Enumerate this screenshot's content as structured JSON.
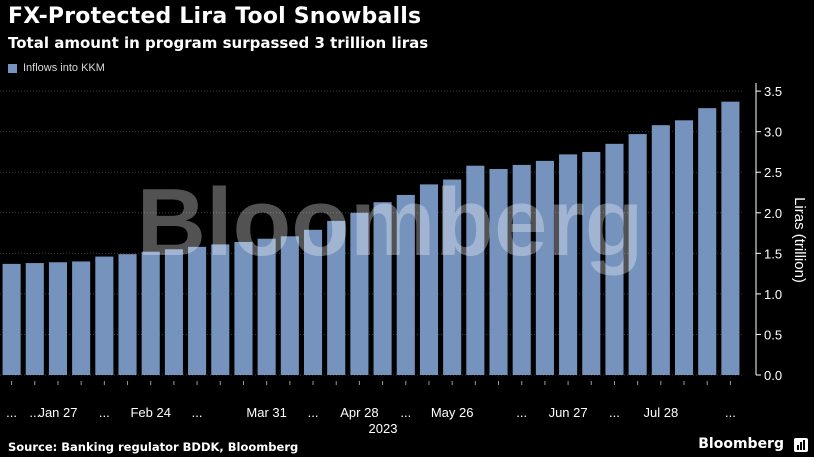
{
  "header": {
    "title": "FX-Protected Lira Tool Snowballs",
    "subtitle": "Total amount in program surpassed 3 trillion liras"
  },
  "legend": {
    "label": "Inflows into KKM"
  },
  "watermark": "Bloomberg",
  "footer": {
    "source": "Source: Banking regulator BDDK, Bloomberg",
    "brand": "Bloomberg"
  },
  "colors": {
    "bar": "#7593bd",
    "background": "#000000",
    "grid": "#3a3a3a",
    "text": "#ffffff"
  },
  "chart_data": {
    "type": "bar",
    "title": "FX-Protected Lira Tool Snowballs",
    "subtitle": "Total amount in program surpassed 3 trillion liras",
    "xlabel": "2023",
    "ylabel": "Liras (trillion)",
    "ylim": [
      0,
      3.6
    ],
    "yticks": [
      0.0,
      0.5,
      1.0,
      1.5,
      2.0,
      2.5,
      3.0,
      3.5
    ],
    "ytick_labels": [
      "0.0",
      "0.5",
      "1.0",
      "1.5",
      "2.0",
      "2.5",
      "3.0",
      "3.5"
    ],
    "series": [
      {
        "name": "Inflows into KKM",
        "values": [
          1.37,
          1.38,
          1.39,
          1.4,
          1.46,
          1.49,
          1.52,
          1.55,
          1.58,
          1.61,
          1.64,
          1.68,
          1.71,
          1.79,
          1.9,
          2.0,
          2.13,
          2.22,
          2.35,
          2.41,
          2.58,
          2.54,
          2.59,
          2.64,
          2.72,
          2.75,
          2.85,
          2.97,
          3.08,
          3.14,
          3.29,
          3.37
        ]
      }
    ],
    "x_tick_labels": [
      {
        "index": 2,
        "label": "Jan 27"
      },
      {
        "index": 6,
        "label": "Feb 24"
      },
      {
        "index": 11,
        "label": "Mar 31"
      },
      {
        "index": 15,
        "label": "Apr 28"
      },
      {
        "index": 19,
        "label": "May 26"
      },
      {
        "index": 24,
        "label": "Jun 27"
      },
      {
        "index": 28,
        "label": "Jul 28"
      }
    ],
    "x_ellipsis_indices": [
      0,
      1,
      4,
      8,
      13,
      17,
      22,
      26,
      31
    ],
    "x_ellipsis_text": "...",
    "year_label": "2023",
    "legend_position": "top-left",
    "grid": true
  }
}
